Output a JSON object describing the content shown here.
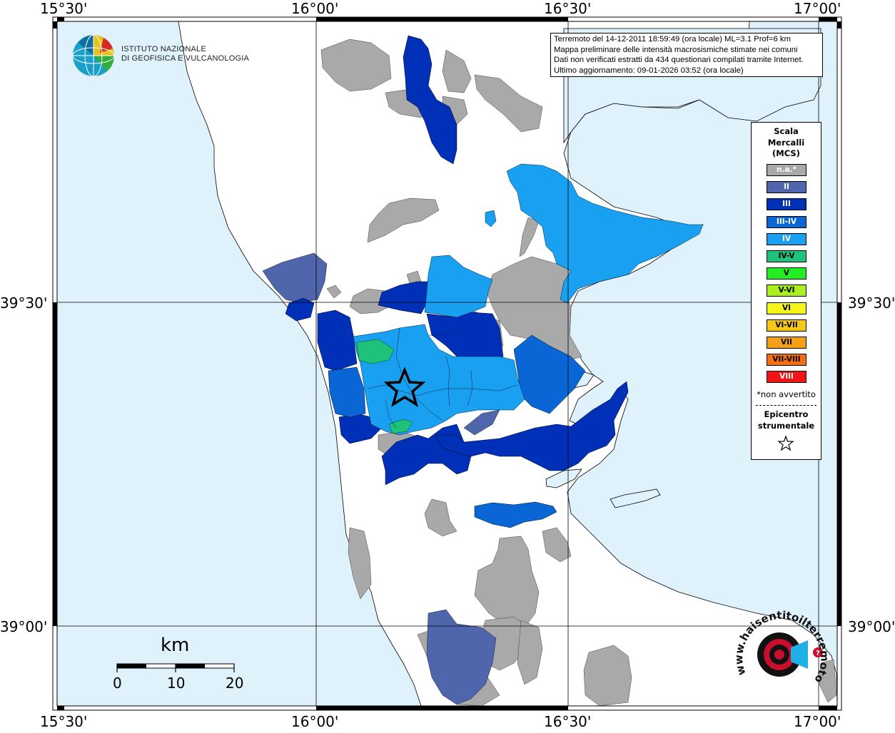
{
  "grid": {
    "lon_labels": [
      "15°30'",
      "16°00'",
      "16°30'",
      "17°00'"
    ],
    "lat_labels": [
      "39°30'",
      "39°00'"
    ]
  },
  "info": {
    "line1": "Terremoto del 14-12-2011 18:59:49 (ora locale) ML=3.1 Prof=6 km",
    "line2": "Mappa preliminare delle intensità macrosismiche stimate nei comuni",
    "line3": "Dati non verificati estratti da 434 questionari compilati tramite Internet.",
    "line4": "Ultimo aggiornamento: 09-01-2026 03:52 (ora locale)"
  },
  "logo": {
    "line1": "ISTITUTO NAZIONALE",
    "line2": "DI GEOFISICA E VULCANOLOGIA"
  },
  "legend": {
    "title1": "Scala",
    "title2": "Mercalli",
    "title3": "(MCS)",
    "items": [
      {
        "label": "n.a.*",
        "color": "#a9a9a9",
        "text_color": "#ffffff"
      },
      {
        "label": "II",
        "color": "#4f66ad",
        "text_color": "#ffffff"
      },
      {
        "label": "III",
        "color": "#0030b8",
        "text_color": "#ffffff"
      },
      {
        "label": "III-IV",
        "color": "#0a66d4",
        "text_color": "#ffffff"
      },
      {
        "label": "IV",
        "color": "#1aa0f0",
        "text_color": "#ffffff"
      },
      {
        "label": "IV-V",
        "color": "#1ec27a",
        "text_color": "#000000"
      },
      {
        "label": "V",
        "color": "#22ee22",
        "text_color": "#000000"
      },
      {
        "label": "V-VI",
        "color": "#aaf01e",
        "text_color": "#000000"
      },
      {
        "label": "VI",
        "color": "#f5f51a",
        "text_color": "#000000"
      },
      {
        "label": "VI-VII",
        "color": "#f5c814",
        "text_color": "#000000"
      },
      {
        "label": "VII",
        "color": "#f5a014",
        "text_color": "#000000"
      },
      {
        "label": "VII-VIII",
        "color": "#f56e10",
        "text_color": "#000000"
      },
      {
        "label": "VIII",
        "color": "#f01414",
        "text_color": "#ffffff"
      }
    ],
    "note": "*non avvertito",
    "epicenter1": "Epicentro",
    "epicenter2": "strumentale"
  },
  "scalebar": {
    "unit": "km",
    "ticks": [
      "0",
      "10",
      "20"
    ]
  },
  "badge": {
    "text": "www.haisentitoilterremoto.it"
  },
  "colors": {
    "sea": "#dff1fb",
    "land": "#ffffff",
    "na": "#a9a9a9",
    "II": "#4f66ad",
    "III": "#0030b8",
    "III-IV": "#0a66d4",
    "IV": "#1aa0f0",
    "IV-V": "#1ec27a"
  }
}
